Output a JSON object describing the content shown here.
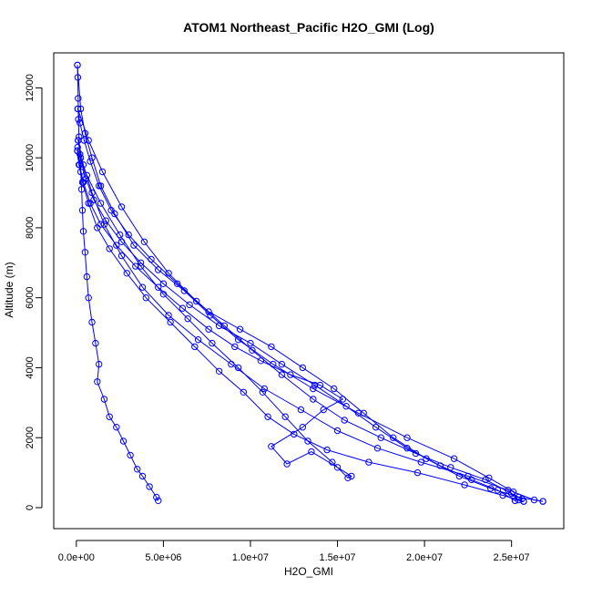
{
  "chart_data": {
    "type": "line",
    "title": "ATOM1 Northeast_Pacific H2O_GMI (Log)",
    "xlabel": "H2O_GMI",
    "ylabel": "Altitude (m)",
    "xlim": [
      -1300000,
      28000000
    ],
    "ylim": [
      -600,
      13000
    ],
    "x_ticks": [
      0,
      5000000,
      10000000,
      15000000,
      20000000,
      25000000
    ],
    "x_tick_labels": [
      "0.0e+00",
      "5.0e+06",
      "1.0e+07",
      "1.5e+07",
      "2.0e+07",
      "2.5e+07"
    ],
    "y_ticks": [
      0,
      2000,
      4000,
      6000,
      8000,
      10000,
      12000
    ],
    "y_tick_labels": [
      "0",
      "2000",
      "4000",
      "6000",
      "8000",
      "10000",
      "12000"
    ],
    "series_color": "#0000ff",
    "marker": "open-circle",
    "series": [
      {
        "points": [
          [
            4700000,
            200
          ],
          [
            4600000,
            300
          ],
          [
            4200000,
            600
          ],
          [
            3800000,
            900
          ],
          [
            3500000,
            1100
          ],
          [
            3100000,
            1500
          ],
          [
            2700000,
            1900
          ],
          [
            2300000,
            2300
          ],
          [
            1900000,
            2600
          ],
          [
            1600000,
            3100
          ],
          [
            1200000,
            3600
          ],
          [
            1300000,
            4100
          ],
          [
            1100000,
            4700
          ],
          [
            900000,
            5300
          ],
          [
            700000,
            6000
          ],
          [
            600000,
            6600
          ],
          [
            500000,
            7300
          ],
          [
            400000,
            7900
          ],
          [
            350000,
            8500
          ],
          [
            300000,
            9100
          ],
          [
            250000,
            9600
          ],
          [
            200000,
            10100
          ],
          [
            150000,
            10600
          ],
          [
            120000,
            11100
          ],
          [
            100000,
            11700
          ],
          [
            80000,
            12300
          ],
          [
            60000,
            12650
          ]
        ]
      },
      {
        "points": [
          [
            60000,
            12650
          ],
          [
            250000,
            11400
          ],
          [
            500000,
            10700
          ],
          [
            900000,
            10000
          ],
          [
            1400000,
            9200
          ],
          [
            2200000,
            8400
          ],
          [
            3300000,
            7500
          ],
          [
            4700000,
            6800
          ],
          [
            6200000,
            6200
          ],
          [
            7700000,
            5500
          ],
          [
            9300000,
            4800
          ],
          [
            11300000,
            4100
          ],
          [
            13600000,
            3400
          ],
          [
            16200000,
            2700
          ],
          [
            19000000,
            2000
          ],
          [
            21700000,
            1400
          ],
          [
            23700000,
            850
          ],
          [
            25100000,
            450
          ],
          [
            26300000,
            220
          ],
          [
            26800000,
            180
          ]
        ]
      },
      {
        "points": [
          [
            26800000,
            180
          ],
          [
            25400000,
            300
          ],
          [
            23800000,
            550
          ],
          [
            22000000,
            900
          ],
          [
            20100000,
            1400
          ],
          [
            18200000,
            2000
          ],
          [
            16500000,
            2700
          ],
          [
            14800000,
            3400
          ],
          [
            13000000,
            4000
          ],
          [
            11200000,
            4600
          ],
          [
            9400000,
            5100
          ],
          [
            7600000,
            5600
          ],
          [
            5800000,
            6400
          ],
          [
            4300000,
            7100
          ],
          [
            3000000,
            7800
          ],
          [
            2000000,
            8500
          ],
          [
            1300000,
            9200
          ],
          [
            800000,
            9900
          ],
          [
            450000,
            10500
          ],
          [
            200000,
            11000
          ],
          [
            80000,
            11400
          ]
        ]
      },
      {
        "points": [
          [
            80000,
            11400
          ],
          [
            700000,
            10500
          ],
          [
            1500000,
            9600
          ],
          [
            2600000,
            8600
          ],
          [
            3900000,
            7600
          ],
          [
            5300000,
            6700
          ],
          [
            6900000,
            5900
          ],
          [
            8500000,
            5200
          ],
          [
            10100000,
            4500
          ],
          [
            11800000,
            3800
          ],
          [
            13600000,
            3100
          ],
          [
            15400000,
            2500
          ],
          [
            17500000,
            2000
          ],
          [
            19500000,
            1550
          ],
          [
            21500000,
            1150
          ],
          [
            23500000,
            800
          ],
          [
            25000000,
            400
          ],
          [
            25600000,
            250
          ],
          [
            25200000,
            200
          ]
        ]
      },
      {
        "points": [
          [
            25200000,
            200
          ],
          [
            24200000,
            500
          ],
          [
            22700000,
            800
          ],
          [
            20900000,
            1200
          ],
          [
            19000000,
            1700
          ],
          [
            17200000,
            2300
          ],
          [
            15500000,
            2900
          ],
          [
            13700000,
            3500
          ],
          [
            11800000,
            4100
          ],
          [
            10000000,
            4700
          ],
          [
            8200000,
            5200
          ],
          [
            6500000,
            5800
          ],
          [
            5000000,
            6400
          ],
          [
            3700000,
            7000
          ],
          [
            2600000,
            7600
          ],
          [
            1700000,
            8200
          ],
          [
            1000000,
            8800
          ],
          [
            550000,
            9400
          ],
          [
            250000,
            10000
          ],
          [
            100000,
            10500
          ]
        ]
      },
      {
        "points": [
          [
            100000,
            10500
          ],
          [
            400000,
            9800
          ],
          [
            900000,
            9000
          ],
          [
            1600000,
            8100
          ],
          [
            2600000,
            7200
          ],
          [
            3800000,
            6300
          ],
          [
            5300000,
            5500
          ],
          [
            7000000,
            4800
          ],
          [
            8900000,
            4100
          ],
          [
            10800000,
            3400
          ],
          [
            12900000,
            2800
          ],
          [
            15000000,
            2200
          ],
          [
            17300000,
            1700
          ],
          [
            19800000,
            1300
          ],
          [
            22500000,
            900
          ],
          [
            24800000,
            500
          ],
          [
            25400000,
            220
          ],
          [
            25700000,
            180
          ]
        ]
      },
      {
        "points": [
          [
            25700000,
            180
          ],
          [
            24500000,
            350
          ],
          [
            22300000,
            650
          ],
          [
            19600000,
            1000
          ],
          [
            16800000,
            1300
          ],
          [
            14400000,
            1650
          ],
          [
            12500000,
            2100
          ],
          [
            11000000,
            2600
          ],
          [
            9600000,
            3300
          ],
          [
            8200000,
            3900
          ],
          [
            6800000,
            4600
          ],
          [
            5400000,
            5300
          ],
          [
            4000000,
            6000
          ],
          [
            2900000,
            6700
          ],
          [
            1900000,
            7400
          ],
          [
            1200000,
            8000
          ],
          [
            700000,
            8700
          ],
          [
            350000,
            9300
          ],
          [
            150000,
            9800
          ],
          [
            60000,
            10200
          ]
        ]
      },
      {
        "points": [
          [
            60000,
            10200
          ],
          [
            600000,
            9500
          ],
          [
            1400000,
            8700
          ],
          [
            2500000,
            7800
          ],
          [
            3700000,
            6900
          ],
          [
            5000000,
            6100
          ],
          [
            6400000,
            5400
          ],
          [
            7800000,
            4700
          ],
          [
            9300000,
            4000
          ],
          [
            10700000,
            3300
          ],
          [
            12000000,
            2600
          ],
          [
            13300000,
            1900
          ],
          [
            14700000,
            1300
          ],
          [
            15600000,
            850
          ],
          [
            15800000,
            900
          ],
          [
            15000000,
            1150
          ],
          [
            13500000,
            1600
          ],
          [
            12100000,
            1250
          ],
          [
            11200000,
            1750
          ],
          [
            13000000,
            2300
          ],
          [
            14200000,
            2800
          ],
          [
            15300000,
            3100
          ],
          [
            14000000,
            3500
          ],
          [
            12300000,
            3800
          ],
          [
            10600000,
            4200
          ],
          [
            9100000,
            4600
          ],
          [
            7600000,
            5100
          ],
          [
            6100000,
            5700
          ],
          [
            4700000,
            6300
          ],
          [
            3400000,
            6900
          ],
          [
            2300000,
            7500
          ],
          [
            1400000,
            8100
          ],
          [
            800000,
            8700
          ],
          [
            400000,
            9300
          ],
          [
            180000,
            9800
          ],
          [
            70000,
            10300
          ]
        ]
      }
    ]
  }
}
